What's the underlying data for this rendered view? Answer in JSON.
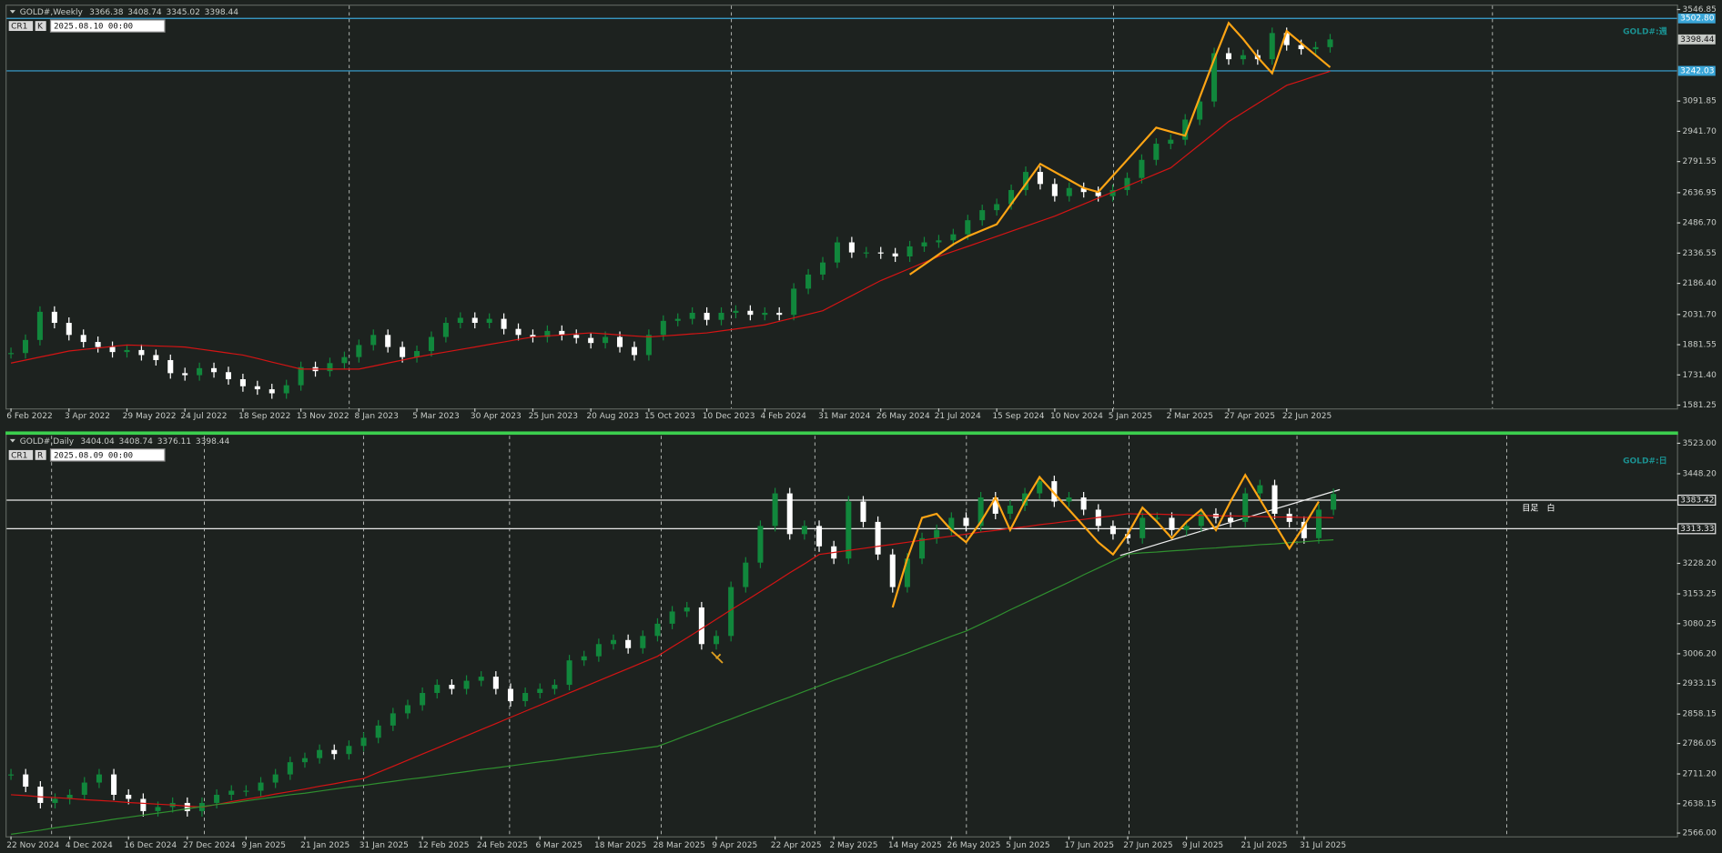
{
  "chart_data": [
    {
      "type": "candlestick",
      "symbol": "GOLD#,Weekly",
      "ohlc": [
        3366.38,
        3408.74,
        3345.02,
        3398.44
      ],
      "cursor_time": "2025.08.10 00:00",
      "tags": [
        "CR1",
        "K"
      ],
      "label": "GOLD#:週",
      "up_color": "#11873c",
      "down_color": "#ffffff",
      "ylim": [
        1565,
        3566
      ],
      "yticks": [
        {
          "value": 3546.85,
          "label": "3546.85"
        },
        3091.85,
        {
          "value": 2941.7,
          "label": "2941.70"
        },
        2791.55,
        2636.95,
        {
          "value": 2486.7,
          "label": "2486.70"
        },
        2336.55,
        {
          "value": 2186.4,
          "label": "2186.40"
        },
        {
          "value": 2031.7,
          "label": "2031.70"
        },
        1881.55,
        {
          "value": 1731.4,
          "label": "1731.40"
        },
        1581.25
      ],
      "levels": [
        {
          "value": 3502.8,
          "label": "3502.80"
        },
        3242.03
      ],
      "level_color": "#3aa6d8",
      "categories": [
        "6 Feb 2022",
        null,
        null,
        null,
        "3 Apr 2022",
        null,
        null,
        null,
        "29 May 2022",
        null,
        null,
        null,
        "24 Jul 2022",
        null,
        null,
        null,
        "18 Sep 2022",
        null,
        null,
        null,
        "13 Nov 2022",
        null,
        null,
        null,
        "8 Jan 2023",
        null,
        null,
        null,
        "5 Mar 2023",
        null,
        null,
        null,
        "30 Apr 2023",
        null,
        null,
        null,
        "25 Jun 2023",
        null,
        null,
        null,
        "20 Aug 2023",
        null,
        null,
        null,
        "15 Oct 2023",
        null,
        null,
        null,
        "10 Dec 2023",
        null,
        null,
        null,
        "4 Feb 2024",
        null,
        null,
        null,
        "31 Mar 2024",
        null,
        null,
        null,
        "26 May 2024",
        null,
        null,
        null,
        "21 Jul 2024",
        null,
        null,
        null,
        "15 Sep 2024",
        null,
        null,
        null,
        "10 Nov 2024",
        null,
        null,
        null,
        "5 Jan 2025",
        null,
        null,
        null,
        "2 Mar 2025",
        null,
        null,
        null,
        "27 Apr 2025",
        null,
        null,
        null,
        "22 Jun 2025",
        null,
        null,
        null
      ],
      "series": [
        {
          "kind": "candle",
          "values": [
            1840,
            1905,
            2045,
            1990,
            1930,
            1895,
            1870,
            1845,
            1855,
            1830,
            1805,
            1740,
            1730,
            1765,
            1745,
            1710,
            1675,
            1660,
            1640,
            1680,
            1770,
            1750,
            1790,
            1820,
            1880,
            1930,
            1870,
            1820,
            1850,
            1920,
            1990,
            2015,
            1990,
            2010,
            1960,
            1930,
            1920,
            1950,
            1930,
            1915,
            1890,
            1920,
            1870,
            1830,
            1930,
            2000,
            2010,
            2040,
            2005,
            2040,
            2050,
            2030,
            2040,
            2030,
            2160,
            2230,
            2290,
            2390,
            2340,
            2340,
            2335,
            2320,
            2370,
            2390,
            2400,
            2430,
            2500,
            2550,
            2580,
            2650,
            2740,
            2680,
            2620,
            2660,
            2640,
            2620,
            2650,
            2710,
            2800,
            2880,
            2900,
            3000,
            3090,
            3330,
            3300,
            3320,
            3300,
            3430,
            3370,
            3350,
            3360,
            3398.44
          ]
        },
        {
          "kind": "line",
          "color": "#d41414",
          "values": [
            1790,
            1805,
            1820,
            1835,
            1850,
            1858,
            1865,
            1873,
            1880,
            1878,
            1875,
            1873,
            1870,
            1860,
            1850,
            1840,
            1830,
            1813,
            1795,
            1778,
            1760,
            1760,
            1760,
            1760,
            1760,
            1775,
            1790,
            1805,
            1820,
            1833,
            1845,
            1858,
            1870,
            1883,
            1895,
            1908,
            1920,
            1925,
            1930,
            1935,
            1940,
            1935,
            1930,
            1925,
            1920,
            1925,
            1930,
            1935,
            1940,
            1950,
            1960,
            1970,
            1980,
            1998,
            2015,
            2033,
            2050,
            2088,
            2125,
            2163,
            2200,
            2230,
            2260,
            2290,
            2320,
            2345,
            2370,
            2395,
            2420,
            2445,
            2470,
            2495,
            2520,
            2550,
            2580,
            2610,
            2640,
            2670,
            2700,
            2730,
            2760,
            2818,
            2875,
            2933,
            2990,
            3035,
            3080,
            3125,
            3170,
            3193,
            3217,
            3240
          ]
        },
        {
          "kind": "line",
          "color": "#ffa514",
          "values": [
            null,
            null,
            null,
            null,
            null,
            null,
            null,
            null,
            null,
            null,
            null,
            null,
            null,
            null,
            null,
            null,
            null,
            null,
            null,
            null,
            null,
            null,
            null,
            null,
            null,
            null,
            null,
            null,
            null,
            null,
            null,
            null,
            null,
            null,
            null,
            null,
            null,
            null,
            null,
            null,
            null,
            null,
            null,
            null,
            null,
            null,
            null,
            null,
            null,
            null,
            null,
            null,
            null,
            null,
            null,
            null,
            null,
            null,
            null,
            null,
            null,
            null,
            2230,
            2280,
            2330,
            2380,
            2420,
            2450,
            2480,
            2580,
            2680,
            2780,
            2740,
            2700,
            2660,
            2640,
            2720,
            2800,
            2880,
            2960,
            2940,
            2920,
            3110,
            3300,
            3480,
            3400,
            3310,
            3230,
            3440,
            3380,
            3320,
            3260
          ]
        }
      ]
    },
    {
      "type": "candlestick",
      "symbol": "GOLD#,Daily",
      "ohlc": [
        3404.04,
        3408.74,
        3376.11,
        3398.44
      ],
      "cursor_time": "2025.08.09 00:00",
      "tags": [
        "CR1",
        "R"
      ],
      "label": "GOLD#:日",
      "note": "目足　白",
      "up_color": "#11873c",
      "down_color": "#ffffff",
      "ylim": [
        2558,
        3544
      ],
      "yticks": [
        {
          "value": 3523,
          "label": "3523.00"
        },
        {
          "value": 3448.2,
          "label": "3448.20"
        },
        {
          "value": 3228.2,
          "label": "3228.20"
        },
        3153.25,
        3080.25,
        {
          "value": 3006.2,
          "label": "3006.20"
        },
        2933.15,
        2858.15,
        2786.05,
        {
          "value": 2711.2,
          "label": "2711.20"
        },
        2638.15,
        {
          "value": 2566,
          "label": "2566.00"
        }
      ],
      "levels": [
        3383.42,
        3313.33
      ],
      "level_color": "#e8e8e8",
      "categories": [
        "22 Nov 2024",
        null,
        null,
        null,
        "4 Dec 2024",
        null,
        null,
        null,
        "16 Dec 2024",
        null,
        null,
        null,
        "27 Dec 2024",
        null,
        null,
        null,
        "9 Jan 2025",
        null,
        null,
        null,
        "21 Jan 2025",
        null,
        null,
        null,
        "31 Jan 2025",
        null,
        null,
        null,
        "12 Feb 2025",
        null,
        null,
        null,
        "24 Feb 2025",
        null,
        null,
        null,
        "6 Mar 2025",
        null,
        null,
        null,
        "18 Mar 2025",
        null,
        null,
        null,
        "28 Mar 2025",
        null,
        null,
        null,
        "9 Apr 2025",
        null,
        null,
        null,
        "22 Apr 2025",
        null,
        null,
        null,
        "2 May 2025",
        null,
        null,
        null,
        "14 May 2025",
        null,
        null,
        null,
        "26 May 2025",
        null,
        null,
        null,
        "5 Jun 2025",
        null,
        null,
        null,
        "17 Jun 2025",
        null,
        null,
        null,
        "27 Jun 2025",
        null,
        null,
        null,
        "9 Jul 2025",
        null,
        null,
        null,
        "21 Jul 2025",
        null,
        null,
        null,
        "31 Jul 2025",
        null,
        null
      ],
      "series": [
        {
          "kind": "candle",
          "values": [
            2710,
            2680,
            2640,
            2650,
            2660,
            2690,
            2710,
            2660,
            2650,
            2620,
            2630,
            2640,
            2620,
            2640,
            2660,
            2670,
            2670,
            2690,
            2710,
            2740,
            2750,
            2770,
            2760,
            2780,
            2800,
            2830,
            2860,
            2880,
            2910,
            2930,
            2920,
            2940,
            2950,
            2920,
            2890,
            2910,
            2920,
            2930,
            2990,
            3000,
            3030,
            3040,
            3020,
            3050,
            3080,
            3110,
            3120,
            3030,
            3050,
            3170,
            3230,
            3320,
            3400,
            3300,
            3320,
            3270,
            3240,
            3380,
            3330,
            3250,
            3170,
            3240,
            3290,
            3310,
            3340,
            3320,
            3390,
            3350,
            3370,
            3400,
            3430,
            3380,
            3390,
            3360,
            3320,
            3300,
            3290,
            3340,
            3340,
            3310,
            3320,
            3350,
            3340,
            3330,
            3400,
            3420,
            3350,
            3330,
            3290,
            3360,
            3398.44
          ]
        },
        {
          "kind": "line",
          "color": "#d41414",
          "values": [
            2660,
            2658,
            2655,
            2653,
            2651,
            2648,
            2646,
            2644,
            2641,
            2639,
            2637,
            2635,
            2632,
            2630,
            2636,
            2643,
            2649,
            2655,
            2662,
            2668,
            2674,
            2681,
            2687,
            2694,
            2700,
            2715,
            2730,
            2745,
            2760,
            2775,
            2790,
            2805,
            2820,
            2835,
            2850,
            2865,
            2880,
            2895,
            2910,
            2925,
            2940,
            2955,
            2970,
            2985,
            3000,
            3023,
            3045,
            3068,
            3091,
            3114,
            3136,
            3159,
            3182,
            3205,
            3227,
            3250,
            3255,
            3260,
            3265,
            3270,
            3275,
            3280,
            3285,
            3290,
            3295,
            3300,
            3305,
            3309,
            3314,
            3318,
            3323,
            3327,
            3332,
            3336,
            3341,
            3345,
            3350,
            3349,
            3349,
            3348,
            3347,
            3346,
            3345,
            3345,
            3344,
            3343,
            3342,
            3342,
            3341,
            3341,
            3340
          ]
        },
        {
          "kind": "line",
          "color": "#2f8f2f",
          "values": [
            2563,
            2568,
            2573,
            2579,
            2584,
            2589,
            2594,
            2600,
            2605,
            2610,
            2615,
            2620,
            2626,
            2631,
            2636,
            2640,
            2645,
            2650,
            2655,
            2660,
            2664,
            2669,
            2674,
            2679,
            2683,
            2688,
            2693,
            2698,
            2702,
            2707,
            2712,
            2717,
            2722,
            2726,
            2731,
            2736,
            2741,
            2745,
            2750,
            2755,
            2760,
            2764,
            2769,
            2774,
            2779,
            2792,
            2806,
            2819,
            2833,
            2846,
            2860,
            2873,
            2887,
            2900,
            2914,
            2927,
            2941,
            2954,
            2968,
            2981,
            2995,
            3008,
            3022,
            3035,
            3049,
            3062,
            3079,
            3096,
            3114,
            3131,
            3148,
            3165,
            3182,
            3200,
            3217,
            3234,
            3251,
            3254,
            3256,
            3259,
            3261,
            3264,
            3266,
            3269,
            3271,
            3274,
            3276,
            3279,
            3281,
            3284,
            3286
          ]
        },
        {
          "kind": "line",
          "color": "#ffa514",
          "values": [
            null,
            null,
            null,
            null,
            null,
            null,
            null,
            null,
            null,
            null,
            null,
            null,
            null,
            null,
            null,
            null,
            null,
            null,
            null,
            null,
            null,
            null,
            null,
            null,
            null,
            null,
            null,
            null,
            null,
            null,
            null,
            null,
            null,
            null,
            null,
            null,
            null,
            null,
            null,
            null,
            null,
            null,
            null,
            null,
            null,
            null,
            null,
            null,
            null,
            null,
            null,
            null,
            null,
            null,
            null,
            null,
            null,
            null,
            null,
            null,
            3120,
            3240,
            3340,
            3350,
            3310,
            3280,
            3330,
            3390,
            3310,
            3380,
            3440,
            3400,
            3360,
            3320,
            3280,
            3250,
            3300,
            3365,
            3330,
            3290,
            3330,
            3360,
            3310,
            3380,
            3445,
            3385,
            3325,
            3265,
            3320,
            3380,
            null
          ]
        }
      ]
    }
  ]
}
